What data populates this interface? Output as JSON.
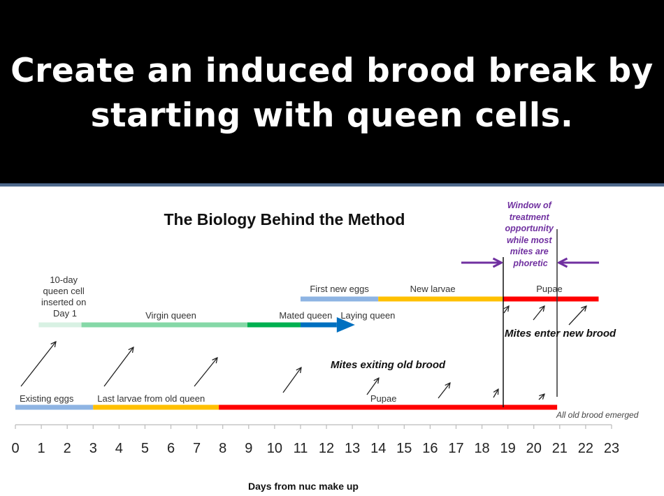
{
  "slide": {
    "title_line1": "Create an induced brood break by",
    "title_line2": "starting with queen cells."
  },
  "chart_data": {
    "type": "timeline",
    "title": "The Biology Behind the Method",
    "xlabel": "Days from nuc make up",
    "xlim": [
      0,
      23
    ],
    "ticks": [
      0,
      1,
      2,
      3,
      4,
      5,
      6,
      7,
      8,
      9,
      10,
      11,
      12,
      13,
      14,
      15,
      16,
      17,
      18,
      19,
      20,
      21,
      22,
      23
    ],
    "colors": {
      "eggs": "#8eb4e3",
      "larvae": "#ffc000",
      "pupae": "#ff0000",
      "queen_cell": "#d8f1e3",
      "virgin_queen": "#85d8a7",
      "mated_queen": "#00b050",
      "laying_queen": "#0070c0",
      "window": "#7030a0"
    },
    "rows": [
      {
        "name": "queen",
        "segments": [
          {
            "label": "10-day queen cell inserted on Day 1",
            "start": 0.9,
            "end": 2.55,
            "color_key": "queen_cell"
          },
          {
            "label": "Virgin queen",
            "start": 2.55,
            "end": 8.95,
            "color_key": "virgin_queen"
          },
          {
            "label": "Mated queen",
            "start": 8.95,
            "end": 11.0,
            "color_key": "mated_queen"
          },
          {
            "label": "Laying queen",
            "start": 11.0,
            "end": 13.1,
            "color_key": "laying_queen",
            "arrow": true
          }
        ]
      },
      {
        "name": "new_brood",
        "segments": [
          {
            "label": "First new eggs",
            "start": 11.0,
            "end": 14.0,
            "color_key": "eggs"
          },
          {
            "label": "New larvae",
            "start": 14.0,
            "end": 18.8,
            "color_key": "larvae"
          },
          {
            "label": "Pupae",
            "start": 18.8,
            "end": 22.5,
            "color_key": "pupae"
          }
        ]
      },
      {
        "name": "old_brood",
        "segments": [
          {
            "label": "Existing eggs",
            "start": 0.0,
            "end": 3.0,
            "color_key": "eggs"
          },
          {
            "label": "Last larvae from old queen",
            "start": 3.0,
            "end": 7.85,
            "color_key": "larvae"
          },
          {
            "label": "Pupae",
            "start": 7.85,
            "end": 20.9,
            "color_key": "pupae"
          }
        ]
      }
    ],
    "markers": [
      {
        "name": "window-start",
        "day": 18.8
      },
      {
        "name": "window-end",
        "day": 20.9
      }
    ],
    "annotations": {
      "window": [
        "Window of",
        "treatment",
        "opportunity",
        "while most",
        "mites are",
        "phoretic"
      ],
      "mites_exiting": "Mites exiting old brood",
      "mites_entering": "Mites enter new brood",
      "all_emerged": "All old brood emerged"
    }
  }
}
